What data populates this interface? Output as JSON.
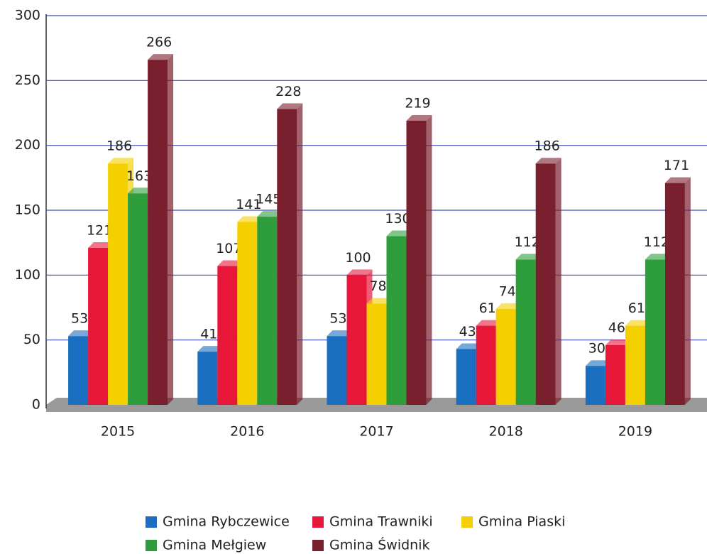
{
  "chart_data": {
    "type": "bar",
    "categories": [
      "2015",
      "2016",
      "2017",
      "2018",
      "2019"
    ],
    "series": [
      {
        "name": "Gmina Rybczewice",
        "color": "#1a6fc0",
        "values": [
          53,
          41,
          53,
          43,
          30
        ]
      },
      {
        "name": "Gmina Trawniki",
        "color": "#e8173a",
        "values": [
          121,
          107,
          100,
          61,
          46
        ]
      },
      {
        "name": "Gmina Piaski",
        "color": "#f5d000",
        "values": [
          186,
          141,
          78,
          74,
          61
        ]
      },
      {
        "name": "Gmina Mełgiew",
        "color": "#2e9e3c",
        "values": [
          163,
          145,
          130,
          112,
          112
        ]
      },
      {
        "name": "Gmina Świdnik",
        "color": "#7a1f2e",
        "values": [
          266,
          228,
          219,
          186,
          171
        ]
      }
    ],
    "ylim": [
      0,
      300
    ],
    "yticks": [
      0,
      50,
      100,
      150,
      200,
      250,
      300
    ],
    "grid": true,
    "legend": "bottom"
  }
}
